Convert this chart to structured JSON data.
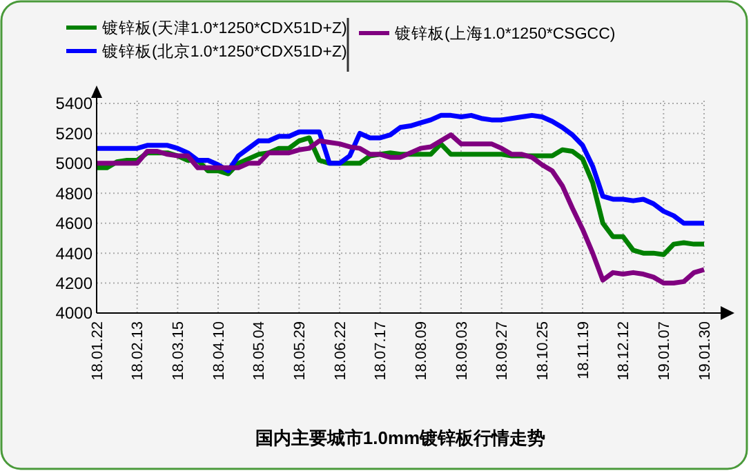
{
  "chart_data": {
    "type": "line",
    "title": "国内主要城市1.0mm镀锌板行情走势",
    "categories": [
      "18.01.22",
      null,
      null,
      null,
      "18.02.13",
      null,
      null,
      null,
      "18.03.15",
      null,
      null,
      null,
      "18.04.10",
      null,
      null,
      null,
      "18.05.04",
      null,
      null,
      null,
      "18.05.29",
      null,
      null,
      null,
      "18.06.22",
      null,
      null,
      null,
      "18.07.17",
      null,
      null,
      null,
      "18.08.09",
      null,
      null,
      null,
      "18.09.03",
      null,
      null,
      null,
      "18.09.27",
      null,
      null,
      null,
      "18.10.25",
      null,
      null,
      null,
      "18.11.19",
      null,
      null,
      null,
      "18.12.12",
      null,
      null,
      null,
      "19.01.07",
      null,
      null,
      null,
      "19.01.30"
    ],
    "series": [
      {
        "name": "镀锌板(天津1.0*1250*CDX51D+Z)",
        "color": "#008000",
        "values": [
          4970,
          4970,
          5010,
          5020,
          5020,
          5070,
          5070,
          5070,
          5050,
          5020,
          5020,
          4950,
          4950,
          4930,
          5000,
          5030,
          5060,
          5070,
          5100,
          5100,
          5150,
          5170,
          5020,
          5000,
          5000,
          5000,
          5000,
          5050,
          5060,
          5070,
          5060,
          5060,
          5060,
          5060,
          5130,
          5060,
          5060,
          5060,
          5060,
          5060,
          5060,
          5050,
          5050,
          5050,
          5050,
          5050,
          5090,
          5080,
          5030,
          4870,
          4600,
          4510,
          4510,
          4420,
          4400,
          4400,
          4390,
          4460,
          4470,
          4460,
          4460
        ]
      },
      {
        "name": "镀锌板(北京1.0*1250*CDX51D+Z)",
        "color": "#0000ff",
        "values": [
          5100,
          5100,
          5100,
          5100,
          5100,
          5120,
          5120,
          5120,
          5100,
          5070,
          5020,
          5020,
          4990,
          4950,
          5050,
          5100,
          5150,
          5150,
          5180,
          5180,
          5210,
          5210,
          5210,
          5000,
          5000,
          5050,
          5200,
          5170,
          5170,
          5190,
          5240,
          5250,
          5270,
          5290,
          5320,
          5320,
          5310,
          5320,
          5300,
          5290,
          5290,
          5300,
          5310,
          5320,
          5310,
          5280,
          5240,
          5190,
          5120,
          4980,
          4780,
          4760,
          4760,
          4750,
          4760,
          4730,
          4680,
          4650,
          4600,
          4600,
          4600
        ]
      },
      {
        "name": "镀锌板(上海1.0*1250*CSGCC)",
        "color": "#800080",
        "values": [
          5000,
          5000,
          5000,
          5000,
          5000,
          5080,
          5080,
          5060,
          5050,
          5050,
          4970,
          4970,
          4970,
          4970,
          4970,
          5000,
          5000,
          5070,
          5070,
          5070,
          5090,
          5100,
          5150,
          5140,
          5130,
          5110,
          5100,
          5060,
          5060,
          5040,
          5040,
          5070,
          5100,
          5110,
          5150,
          5190,
          5130,
          5130,
          5130,
          5130,
          5100,
          5060,
          5060,
          5040,
          4990,
          4950,
          4850,
          4700,
          4560,
          4400,
          4220,
          4270,
          4260,
          4270,
          4260,
          4240,
          4200,
          4200,
          4210,
          4270,
          4290
        ]
      }
    ],
    "ylim": [
      4000,
      5400
    ],
    "yticks": [
      4000,
      4200,
      4400,
      4600,
      4800,
      5000,
      5200,
      5400
    ],
    "grid": true,
    "legend": "top"
  }
}
